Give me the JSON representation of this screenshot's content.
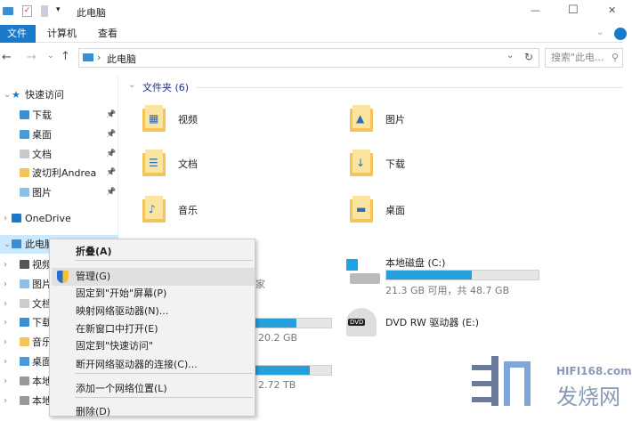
{
  "window": {
    "title": "此电脑",
    "minimize": "—",
    "maximize": "☐",
    "close": "✕"
  },
  "ribbon": {
    "tabs": [
      {
        "label": "文件"
      },
      {
        "label": "计算机"
      },
      {
        "label": "查看"
      }
    ]
  },
  "address": {
    "path": "此电脑",
    "search_placeholder": "搜索\"此电..."
  },
  "sidebar": {
    "items": [
      {
        "label": "快速访问",
        "icon": "star-icon"
      },
      {
        "label": "下载",
        "icon": "download-folder-icon",
        "pinned": true
      },
      {
        "label": "桌面",
        "icon": "desktop-folder-icon",
        "pinned": true
      },
      {
        "label": "文档",
        "icon": "documents-folder-icon",
        "pinned": true
      },
      {
        "label": "波切利Andrea",
        "icon": "folder-icon",
        "pinned": true
      },
      {
        "label": "图片",
        "icon": "pictures-folder-icon",
        "pinned": true
      },
      {
        "label": "OneDrive",
        "icon": "cloud-icon"
      },
      {
        "label": "此电脑",
        "icon": "computer-icon",
        "selected": true
      },
      {
        "label": "视频"
      },
      {
        "label": "图片"
      },
      {
        "label": "文档"
      },
      {
        "label": "下载"
      },
      {
        "label": "音乐"
      },
      {
        "label": "桌面"
      },
      {
        "label": "本地"
      },
      {
        "label": "本地"
      }
    ]
  },
  "folders": {
    "header": "文件夹 (6)",
    "items": [
      {
        "label": "视频"
      },
      {
        "label": "图片"
      },
      {
        "label": "文档"
      },
      {
        "label": "下载"
      },
      {
        "label": "音乐"
      },
      {
        "label": "桌面"
      }
    ]
  },
  "drives": {
    "c": {
      "label": "本地磁盘 (C:)",
      "info": "21.3 GB 可用，共 48.7 GB",
      "used_fraction": 0.56
    },
    "dvd": {
      "label": "DVD RW 驱动器 (E:)"
    },
    "hidden1": {
      "partial_text": "家"
    },
    "hidden2": {
      "info": "20.2 GB",
      "used_fraction": 0.77
    },
    "hidden3": {
      "info": "2.72 TB",
      "used_fraction": 0.86
    }
  },
  "context_menu": {
    "items": [
      {
        "label": "折叠(A)",
        "bold": true
      },
      {
        "label": "管理(G)",
        "icon": "shield-icon",
        "highlighted": true
      },
      {
        "label": "固定到\"开始\"屏幕(P)"
      },
      {
        "label": "映射网络驱动器(N)..."
      },
      {
        "label": "在新窗口中打开(E)"
      },
      {
        "label": "固定到\"快速访问\""
      },
      {
        "label": "断开网络驱动器的连接(C)..."
      },
      {
        "label": "添加一个网络位置(L)"
      },
      {
        "label": "删除(D)"
      }
    ]
  },
  "watermark": {
    "site": "HIFI168.com",
    "name": "发烧网"
  },
  "colors": {
    "accent": "#1979ca",
    "bar_fill": "#26a0da",
    "folder": "#f2c45a"
  }
}
